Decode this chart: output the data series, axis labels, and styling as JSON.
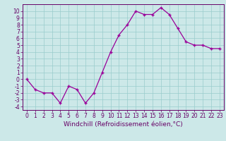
{
  "hours": [
    0,
    1,
    2,
    3,
    4,
    5,
    6,
    7,
    8,
    9,
    10,
    11,
    12,
    13,
    14,
    15,
    16,
    17,
    18,
    19,
    20,
    21,
    22,
    23
  ],
  "values": [
    0,
    -1.5,
    -2,
    -2,
    -3.5,
    -1,
    -1.5,
    -3.5,
    -2,
    1,
    4,
    6.5,
    8,
    10,
    9.5,
    9.5,
    10.5,
    9.5,
    7.5,
    5.5,
    5,
    5,
    4.5,
    4.5
  ],
  "line_color": "#990099",
  "marker": "+",
  "bg_color": "#cce8e8",
  "grid_color": "#99cccc",
  "xlabel": "Windchill (Refroidissement éolien,°C)",
  "ylim": [
    -4.5,
    11
  ],
  "xlim": [
    -0.5,
    23.5
  ],
  "yticks": [
    -4,
    -3,
    -2,
    -1,
    0,
    1,
    2,
    3,
    4,
    5,
    6,
    7,
    8,
    9,
    10
  ],
  "xticks": [
    0,
    1,
    2,
    3,
    4,
    5,
    6,
    7,
    8,
    9,
    10,
    11,
    12,
    13,
    14,
    15,
    16,
    17,
    18,
    19,
    20,
    21,
    22,
    23
  ],
  "tick_color": "#660066",
  "label_fontsize": 6.5,
  "tick_fontsize": 5.5
}
